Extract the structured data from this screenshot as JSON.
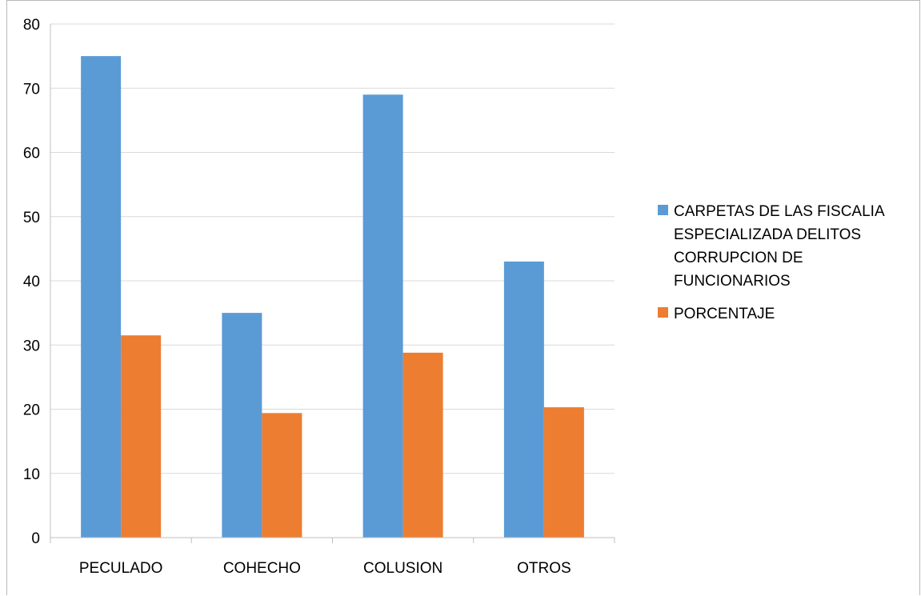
{
  "chart_data": {
    "type": "bar",
    "categories": [
      "PECULADO",
      "COHECHO",
      "COLUSION",
      "OTROS"
    ],
    "series": [
      {
        "name": "CARPETAS DE LAS FISCALIA ESPECIALIZADA DELITOS CORRUPCION DE FUNCIONARIOS",
        "values": [
          75,
          35,
          69,
          43
        ],
        "color": "#5B9BD5"
      },
      {
        "name": "PORCENTAJE",
        "values": [
          31.5,
          19.4,
          28.8,
          20.3
        ],
        "color": "#ED7D31"
      }
    ],
    "ylim": [
      0,
      80
    ],
    "yticks": [
      0,
      10,
      20,
      30,
      40,
      50,
      60,
      70,
      80
    ],
    "grid": true,
    "legend_position": "right",
    "title": "",
    "xlabel": "",
    "ylabel": ""
  }
}
